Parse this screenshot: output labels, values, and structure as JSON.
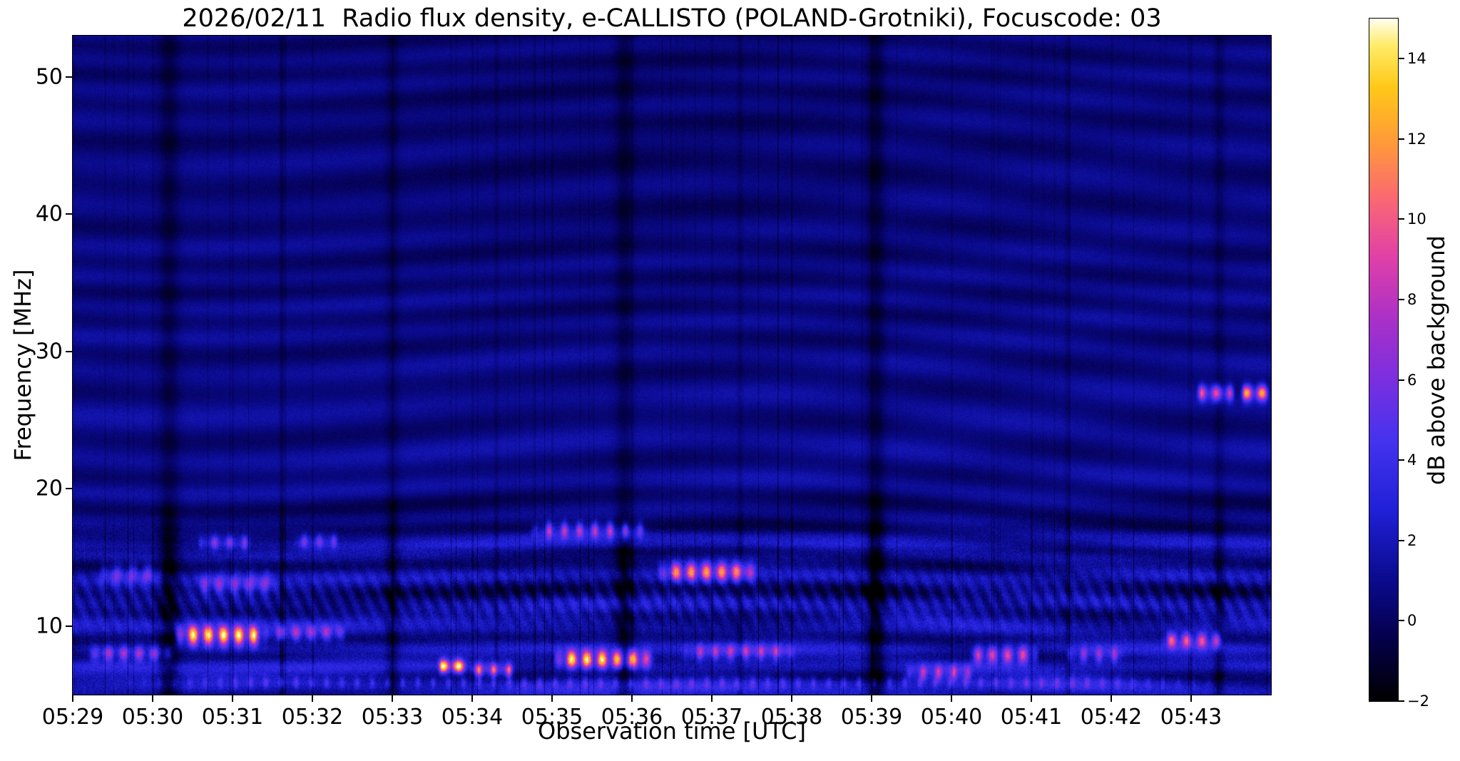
{
  "chart_data": {
    "type": "heatmap",
    "title": "2026/02/11  Radio flux density, e-CALLISTO (POLAND-Grotniki), Focuscode: 03",
    "xlabel": "Observation time [UTC]",
    "ylabel": "Frequency [MHz]",
    "colorbar_label": "dB above background",
    "x_tick_labels": [
      "05:29",
      "05:30",
      "05:31",
      "05:32",
      "05:33",
      "05:34",
      "05:35",
      "05:36",
      "05:37",
      "05:38",
      "05:39",
      "05:40",
      "05:41",
      "05:42",
      "05:43"
    ],
    "x_range_minutes": [
      0,
      15
    ],
    "y_ticks": [
      50,
      40,
      30,
      20,
      10
    ],
    "y_range_mhz": [
      5,
      53
    ],
    "value_range_db": [
      -2,
      15
    ],
    "colorbar_tick_values": [
      14,
      12,
      10,
      8,
      6,
      4,
      2,
      0,
      -2
    ],
    "colorbar_tick_labels": [
      "14",
      "12",
      "10",
      "8",
      "6",
      "4",
      "2",
      "0",
      "−2"
    ],
    "grid": false,
    "legend": "none",
    "colormap_stops": [
      [
        0.0,
        "#000000"
      ],
      [
        0.09,
        "#04004a"
      ],
      [
        0.18,
        "#0b0b8f"
      ],
      [
        0.28,
        "#2020d8"
      ],
      [
        0.38,
        "#4433ee"
      ],
      [
        0.47,
        "#7a2fe0"
      ],
      [
        0.56,
        "#aa30c8"
      ],
      [
        0.65,
        "#e040a8"
      ],
      [
        0.74,
        "#fb6a70"
      ],
      [
        0.82,
        "#ff9b38"
      ],
      [
        0.9,
        "#ffc818"
      ],
      [
        0.96,
        "#ffeb66"
      ],
      [
        1.0,
        "#ffffee"
      ]
    ],
    "background": {
      "base_db": 0.55,
      "low_freq_boost_db": 1.25,
      "low_freq_scale_mhz": 16,
      "low_band_top_mhz": 17.5,
      "bright_line_mhz": 15.9,
      "dark_line_mhz": 17.9
    },
    "features": [
      {
        "t0": 0.15,
        "t1": 1.3,
        "f": 8.0,
        "df": 0.4,
        "amp": 7,
        "patch": 1
      },
      {
        "t0": 1.25,
        "t1": 2.45,
        "f": 9.3,
        "df": 0.5,
        "amp": 14,
        "patch": 1
      },
      {
        "t0": 2.4,
        "t1": 3.45,
        "f": 9.5,
        "df": 0.4,
        "amp": 6,
        "patch": 1
      },
      {
        "t0": 0.3,
        "t1": 1.15,
        "f": 13.8,
        "df": 0.5,
        "amp": 5,
        "patch": 1
      },
      {
        "t0": 1.5,
        "t1": 2.6,
        "f": 13.1,
        "df": 0.5,
        "amp": 5,
        "patch": 1
      },
      {
        "t0": 1.55,
        "t1": 2.25,
        "f": 16.1,
        "df": 0.35,
        "amp": 6,
        "patch": 2
      },
      {
        "t0": 2.75,
        "t1": 3.35,
        "f": 16.2,
        "df": 0.35,
        "amp": 5,
        "patch": 2
      },
      {
        "t0": 4.55,
        "t1": 4.95,
        "f": 7.1,
        "df": 0.35,
        "amp": 13,
        "patch": 1
      },
      {
        "t0": 4.95,
        "t1": 5.55,
        "f": 6.8,
        "df": 0.35,
        "amp": 10,
        "patch": 2
      },
      {
        "t0": 6.0,
        "t1": 7.3,
        "f": 7.6,
        "df": 0.45,
        "amp": 14,
        "patch": 1
      },
      {
        "t0": 5.7,
        "t1": 7.25,
        "f": 17.0,
        "df": 0.4,
        "amp": 8,
        "patch": 2
      },
      {
        "t0": 7.3,
        "t1": 8.6,
        "f": 14.0,
        "df": 0.5,
        "amp": 10,
        "patch": 1
      },
      {
        "t0": 7.6,
        "t1": 9.1,
        "f": 8.1,
        "df": 0.4,
        "amp": 6,
        "patch": 2
      },
      {
        "t0": 10.4,
        "t1": 11.3,
        "f": 6.6,
        "df": 0.4,
        "amp": 7,
        "patch": 2
      },
      {
        "t0": 11.2,
        "t1": 12.1,
        "f": 7.9,
        "df": 0.45,
        "amp": 9,
        "patch": 1
      },
      {
        "t0": 12.4,
        "t1": 13.2,
        "f": 7.9,
        "df": 0.4,
        "amp": 6,
        "patch": 2
      },
      {
        "t0": 13.6,
        "t1": 14.45,
        "f": 9.0,
        "df": 0.4,
        "amp": 9,
        "patch": 1
      },
      {
        "t0": 14.05,
        "t1": 14.55,
        "f": 27.0,
        "df": 0.4,
        "amp": 9,
        "patch": 1
      },
      {
        "t0": 14.6,
        "t1": 15.0,
        "f": 27.0,
        "df": 0.4,
        "amp": 12,
        "patch": 1
      },
      {
        "t0": 0.2,
        "t1": 14.9,
        "f": 5.9,
        "df": 0.3,
        "amp": 3.5,
        "patch": 3
      }
    ],
    "dark_columns": [
      {
        "t": 1.2,
        "w": 0.09,
        "d": 2.2
      },
      {
        "t": 4.0,
        "w": 0.06,
        "d": 1.4
      },
      {
        "t": 6.9,
        "w": 0.08,
        "d": 2.0
      },
      {
        "t": 10.05,
        "w": 0.08,
        "d": 2.4
      },
      {
        "t": 14.35,
        "w": 0.05,
        "d": 1.4
      },
      {
        "t": 2.62,
        "w": 0.025,
        "d": 1.1
      },
      {
        "t": 5.3,
        "w": 0.02,
        "d": 0.9
      },
      {
        "t": 8.35,
        "w": 0.025,
        "d": 1.0
      },
      {
        "t": 12.45,
        "w": 0.025,
        "d": 0.9
      }
    ]
  }
}
